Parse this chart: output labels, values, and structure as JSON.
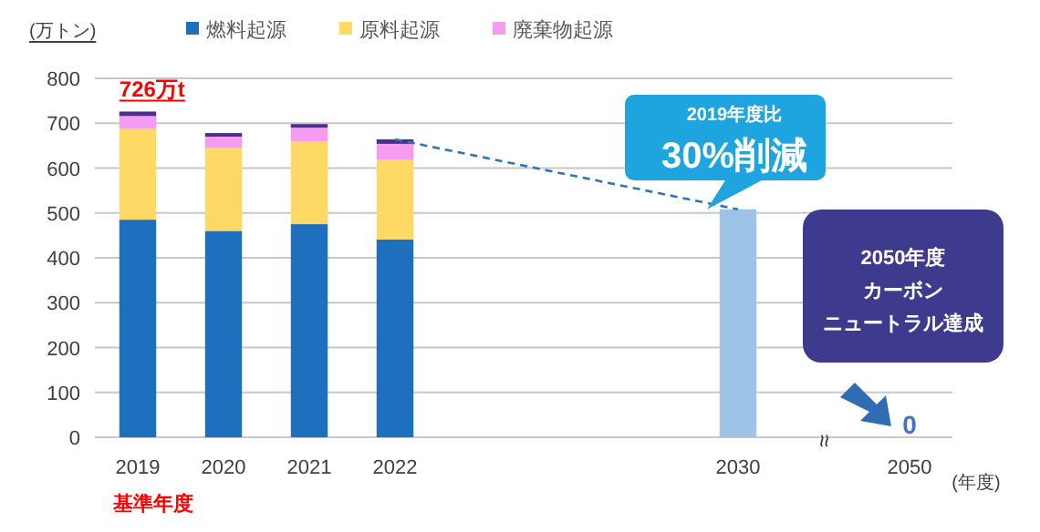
{
  "chart_data": {
    "type": "bar",
    "stacked": true,
    "categories": [
      "2019",
      "2020",
      "2021",
      "2022",
      null,
      null,
      null,
      "2030",
      null,
      "2050"
    ],
    "series": [
      {
        "name": "燃料起源",
        "color": "#1f6fbf",
        "values": [
          485,
          460,
          475,
          441,
          null,
          null,
          null,
          null,
          null,
          null
        ]
      },
      {
        "name": "原料起源",
        "color": "#ffd966",
        "values": [
          203,
          185,
          185,
          178,
          null,
          null,
          null,
          null,
          null,
          null
        ]
      },
      {
        "name": "廃棄物起源",
        "color": "#f59cf0",
        "values": [
          28,
          25,
          30,
          35,
          null,
          null,
          null,
          null,
          null,
          null
        ]
      },
      {
        "color": "#4b2f8a",
        "values": [
          10,
          8,
          8,
          10,
          null,
          null,
          null,
          null,
          null,
          null
        ]
      },
      {
        "color": "#9dc3e6",
        "values": [
          null,
          null,
          null,
          null,
          null,
          null,
          null,
          508,
          null,
          0
        ],
        "value_labels": [
          null,
          null,
          null,
          null,
          null,
          null,
          null,
          null,
          null,
          "0"
        ]
      },
      {
        "type": "line",
        "color": "#2e75b6",
        "line_style": "dashed",
        "marker": "none",
        "values": [
          null,
          null,
          null,
          664,
          null,
          null,
          null,
          508,
          null,
          null
        ]
      }
    ],
    "ylim": [
      0,
      800
    ],
    "yticks": [
      0,
      100,
      200,
      300,
      400,
      500,
      600,
      700,
      800
    ],
    "grid": "y",
    "legend": "top",
    "ylabel": "(万トン)",
    "xlabel": "(年度)",
    "annotations": [
      {
        "text": "726万t",
        "x": "2019",
        "y": 726
      },
      "基準年度",
      "2019年度比",
      "30%削減",
      "2050年度",
      "カーボン",
      "ニュートラル達成",
      "≈"
    ]
  }
}
